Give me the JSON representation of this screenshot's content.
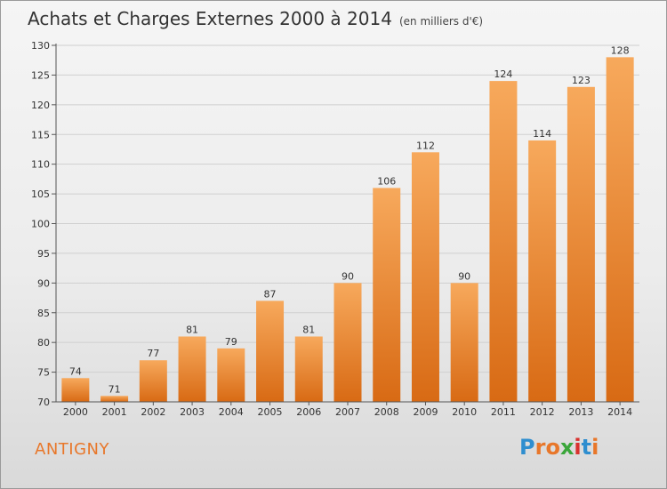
{
  "title": "Achats et Charges Externes 2000 à 2014",
  "subtitle": "(en milliers d'€)",
  "place": "ANTIGNY",
  "logo": {
    "text": "Proxiti",
    "colors": [
      "#2f8ecf",
      "#e8772a",
      "#e8772a",
      "#3aa63a",
      "#d8322e",
      "#2f8ecf",
      "#e8772a"
    ]
  },
  "colors": {
    "bar_top": "#f7a95c",
    "bar_bottom": "#d86a14",
    "axis": "#555555",
    "grid": "#cfcfcf"
  },
  "chart_data": {
    "type": "bar",
    "categories": [
      "2000",
      "2001",
      "2002",
      "2003",
      "2004",
      "2005",
      "2006",
      "2007",
      "2008",
      "2009",
      "2010",
      "2011",
      "2012",
      "2013",
      "2014"
    ],
    "values": [
      74,
      71,
      77,
      81,
      79,
      87,
      81,
      90,
      106,
      112,
      90,
      124,
      114,
      123,
      128
    ],
    "ylim": [
      70,
      130
    ],
    "yticks": [
      70,
      75,
      80,
      85,
      90,
      95,
      100,
      105,
      110,
      115,
      120,
      125,
      130
    ],
    "grid": true,
    "data_labels": true
  }
}
